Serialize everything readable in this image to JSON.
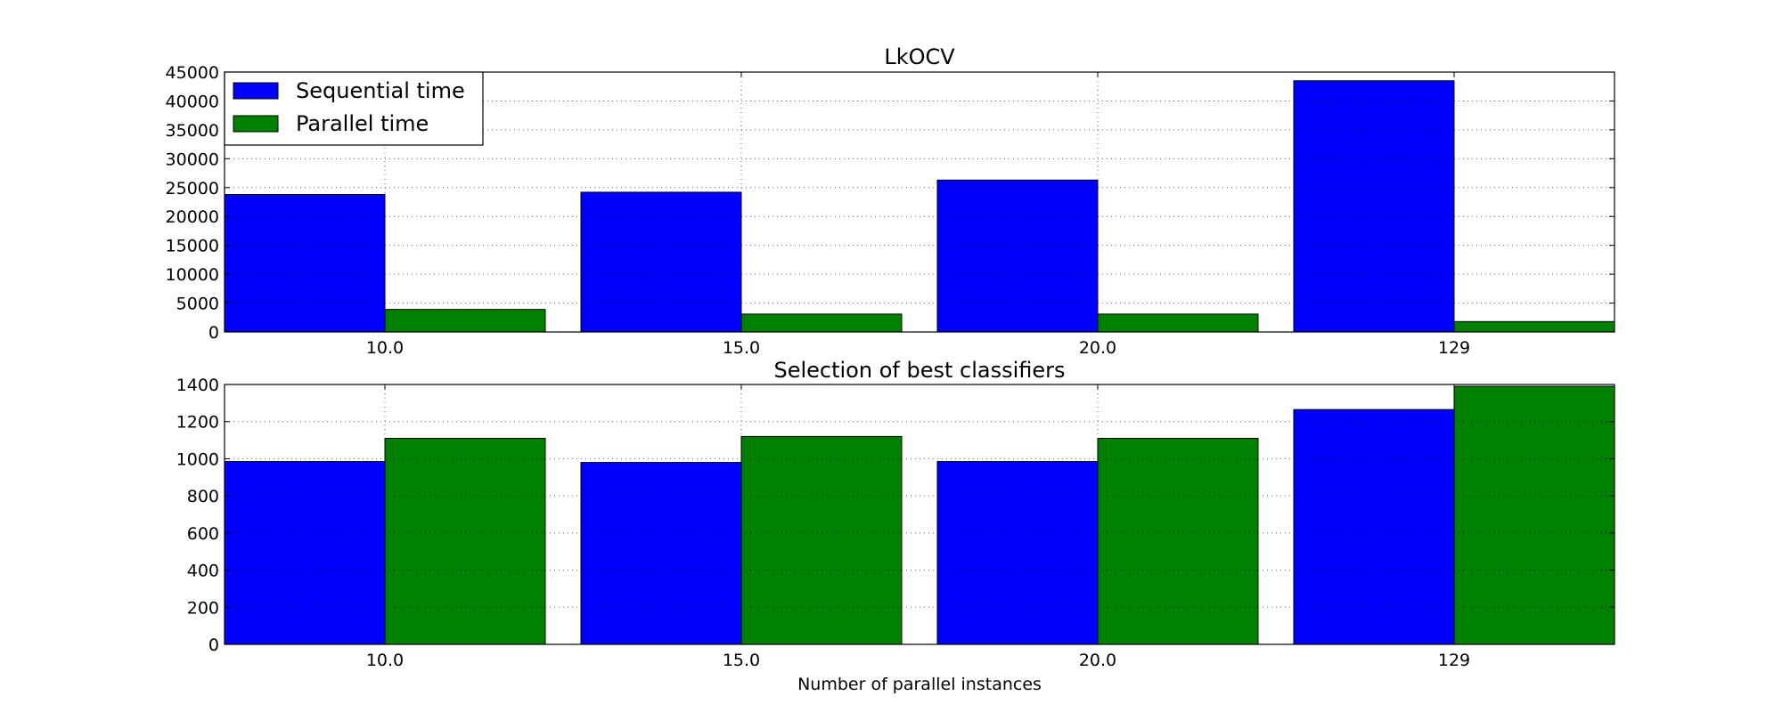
{
  "chart_data": [
    {
      "type": "bar",
      "title": "LkOCV",
      "xlabel": "",
      "ylabel": "",
      "categories": [
        "10.0",
        "15.0",
        "20.0",
        "129"
      ],
      "series": [
        {
          "name": "Sequential time",
          "color": "#0000ff",
          "values": [
            23800,
            24200,
            26300,
            43500
          ]
        },
        {
          "name": "Parallel time",
          "color": "#008000",
          "values": [
            3900,
            3100,
            3100,
            1800
          ]
        }
      ],
      "ylim": [
        0,
        45000
      ],
      "yticks": [
        0,
        5000,
        10000,
        15000,
        20000,
        25000,
        30000,
        35000,
        40000,
        45000
      ],
      "grid": true,
      "legend": "top-left"
    },
    {
      "type": "bar",
      "title": "Selection of best classifiers",
      "xlabel": "Number of parallel instances",
      "ylabel": "",
      "categories": [
        "10.0",
        "15.0",
        "20.0",
        "129"
      ],
      "series": [
        {
          "color": "#0000ff",
          "values": [
            985,
            980,
            985,
            1265
          ]
        },
        {
          "color": "#008000",
          "values": [
            1110,
            1120,
            1110,
            1390
          ]
        }
      ],
      "ylim": [
        0,
        1400
      ],
      "yticks": [
        0,
        200,
        400,
        600,
        800,
        1000,
        1200,
        1400
      ],
      "grid": true
    }
  ]
}
